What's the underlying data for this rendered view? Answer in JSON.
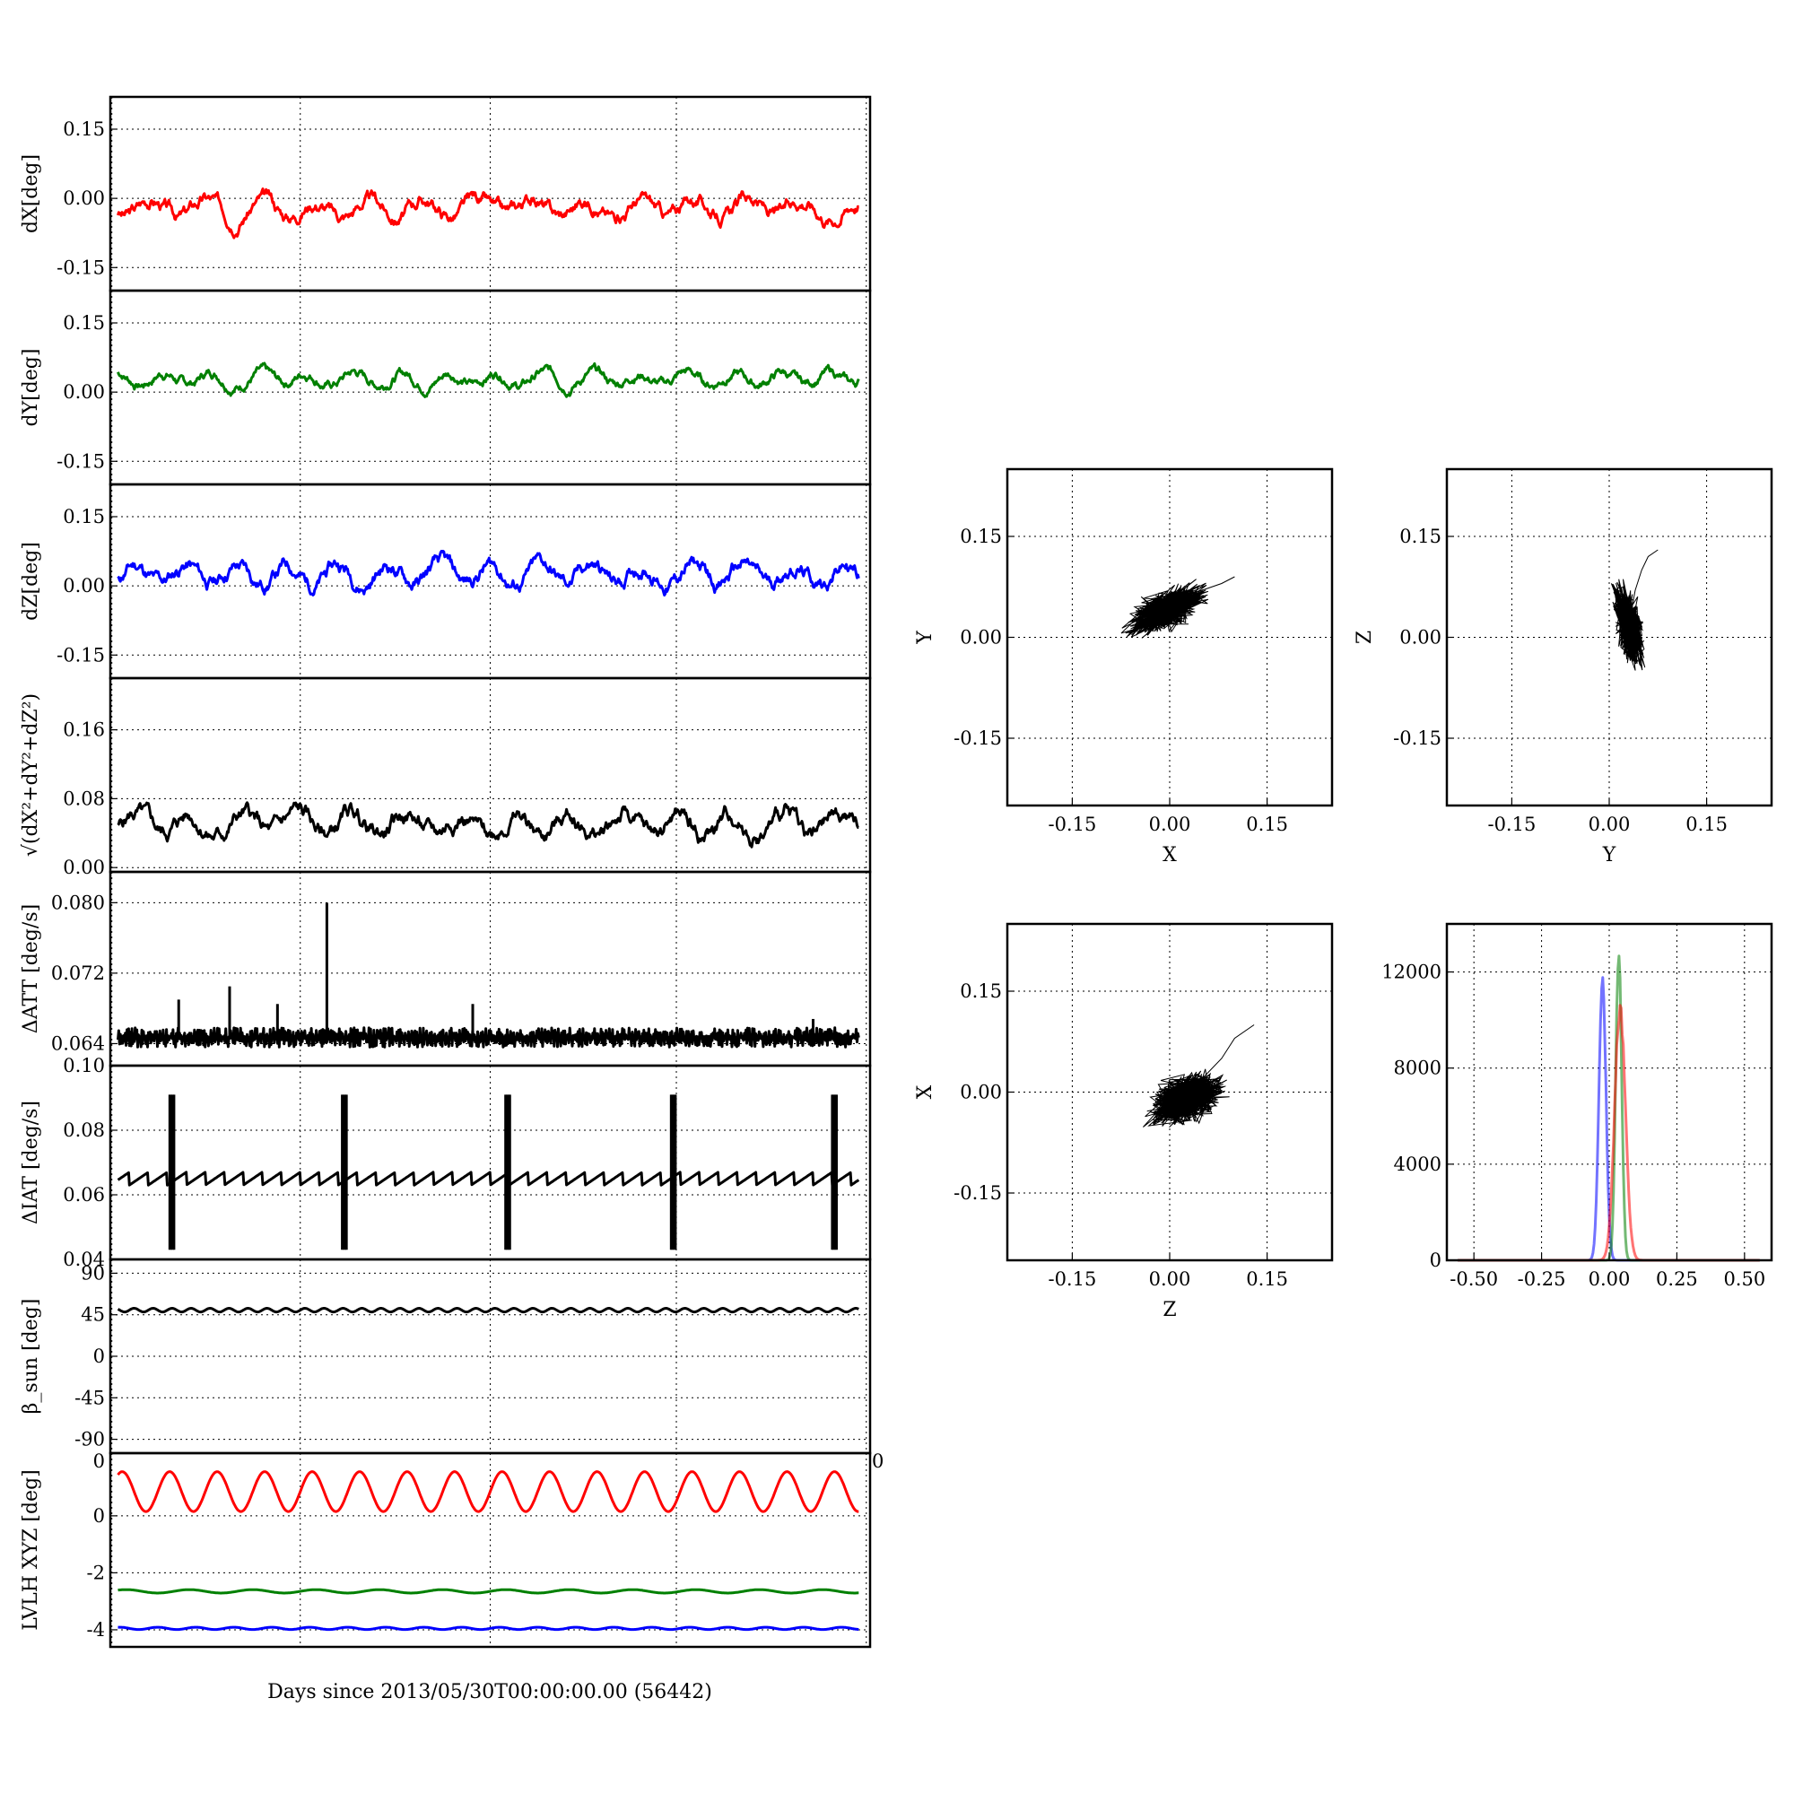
{
  "figure": {
    "xlabel": "Days since 2013/05/30T00:00:00.00 (56442)"
  },
  "chart_data": [
    {
      "id": "dx",
      "type": "line",
      "ylabel": "dX[deg]",
      "ylim": [
        -0.2,
        0.22
      ],
      "yticks": [
        "-0.15",
        "0.00",
        "0.15"
      ],
      "ytick_values": [
        -0.15,
        0.0,
        0.15
      ],
      "xlim": [
        0,
        1
      ],
      "grid": true,
      "series": [
        {
          "color": "#ff0000",
          "generator": "noise",
          "base": -0.02,
          "amp": 0.018,
          "waves": 14,
          "seed": 3,
          "end_jump": [
            0.985,
            1.0,
            0.1
          ]
        }
      ]
    },
    {
      "id": "dy",
      "type": "line",
      "ylabel": "dY[deg]",
      "ylim": [
        -0.2,
        0.22
      ],
      "yticks": [
        "-0.15",
        "0.00",
        "0.15"
      ],
      "ytick_values": [
        -0.15,
        0.0,
        0.15
      ],
      "xlim": [
        0,
        1
      ],
      "grid": true,
      "series": [
        {
          "color": "#008000",
          "generator": "noise",
          "base": 0.03,
          "amp": 0.013,
          "waves": 16,
          "seed": 7,
          "end_jump": [
            0.985,
            1.0,
            0.09
          ]
        }
      ]
    },
    {
      "id": "dz",
      "type": "line",
      "ylabel": "dZ[deg]",
      "ylim": [
        -0.2,
        0.22
      ],
      "yticks": [
        "-0.15",
        "0.00",
        "0.15"
      ],
      "ytick_values": [
        -0.15,
        0.0,
        0.15
      ],
      "xlim": [
        0,
        1
      ],
      "grid": true,
      "series": [
        {
          "color": "#0000ff",
          "generator": "noise",
          "base": 0.025,
          "amp": 0.02,
          "waves": 15,
          "seed": 11,
          "end_jump": [
            0.985,
            1.0,
            0.13
          ]
        }
      ]
    },
    {
      "id": "dr",
      "type": "line",
      "ylabel": "√(dX²+dY²+dZ²)",
      "ylim": [
        -0.005,
        0.22
      ],
      "yticks": [
        "0.00",
        "0.08",
        "0.16"
      ],
      "ytick_values": [
        0.0,
        0.08,
        0.16
      ],
      "xlim": [
        0,
        1
      ],
      "grid": true,
      "series": [
        {
          "color": "#000000",
          "generator": "noise",
          "base": 0.05,
          "amp": 0.012,
          "waves": 14,
          "seed": 5,
          "end_jump": [
            0.985,
            1.0,
            0.18
          ]
        }
      ]
    },
    {
      "id": "datt",
      "type": "line",
      "ylabel": "ΔATT [deg/s]",
      "ylim": [
        0.0615,
        0.0835
      ],
      "yticks": [
        "0.064",
        "0.072",
        "0.080"
      ],
      "ytick_values": [
        0.064,
        0.072,
        0.08
      ],
      "xlim": [
        0,
        1
      ],
      "grid": true,
      "series": [
        {
          "color": "#000000",
          "generator": "dense",
          "base": 0.0647,
          "amp": 0.0011,
          "seed": 9,
          "spikes": [
            [
              0.09,
              0.069
            ],
            [
              0.157,
              0.0705
            ],
            [
              0.22,
              0.0685
            ],
            [
              0.285,
              0.08
            ],
            [
              0.477,
              0.0685
            ],
            [
              0.925,
              0.0668
            ]
          ]
        }
      ]
    },
    {
      "id": "diat",
      "type": "line",
      "ylabel": "ΔIAT [deg/s]",
      "ylim": [
        0.04,
        0.1
      ],
      "yticks": [
        "0.04",
        "0.06",
        "0.08",
        "0.10"
      ],
      "ytick_values": [
        0.04,
        0.06,
        0.08,
        0.1
      ],
      "xlim": [
        0,
        1
      ],
      "grid": true,
      "series": [
        {
          "color": "#000000",
          "generator": "sawtooth",
          "low": 0.063,
          "high": 0.067,
          "teeth": 40,
          "bursts": [
            0.078,
            0.305,
            0.52,
            0.738,
            0.95
          ],
          "burst_low": 0.043,
          "burst_high": 0.091
        }
      ]
    },
    {
      "id": "beta",
      "type": "line",
      "ylabel": "β_sun [deg]",
      "ylim": [
        -105,
        105
      ],
      "yticks": [
        "-90",
        "-45",
        "0",
        "45",
        "90"
      ],
      "ytick_values": [
        -90,
        -45,
        0,
        45,
        90
      ],
      "xlim": [
        0,
        1
      ],
      "grid": true,
      "series": [
        {
          "color": "#000000",
          "generator": "sine",
          "base": 50,
          "amp": 2,
          "waves": 40
        }
      ]
    },
    {
      "id": "lvlh",
      "type": "line",
      "ylabel": "LVLH XYZ [deg]",
      "ylim": [
        -4.6,
        2.2
      ],
      "yticks": [
        "-4",
        "-2",
        "0"
      ],
      "ytick_values": [
        -4,
        -2,
        0
      ],
      "top_tick_label": "0",
      "xlim": [
        0,
        1
      ],
      "grid": true,
      "series": [
        {
          "color": "#ff0000",
          "generator": "sine",
          "base": 0.85,
          "amp": 0.7,
          "waves": 16
        },
        {
          "color": "#008000",
          "generator": "sine",
          "base": -2.65,
          "amp": 0.06,
          "waves": 12
        },
        {
          "color": "#0000ff",
          "generator": "sine",
          "base": -3.95,
          "amp": 0.04,
          "waves": 20
        }
      ]
    },
    {
      "id": "xy",
      "type": "scatter",
      "xlabel": "X",
      "ylabel": "Y",
      "xlim": [
        -0.25,
        0.25
      ],
      "ylim": [
        -0.25,
        0.25
      ],
      "xticks": [
        "-0.15",
        "0.00",
        "0.15"
      ],
      "xtick_values": [
        -0.15,
        0.0,
        0.15
      ],
      "yticks": [
        "-0.15",
        "0.00",
        "0.15"
      ],
      "ytick_values": [
        -0.15,
        0.0,
        0.15
      ],
      "grid": true,
      "cloud": {
        "center": [
          -0.005,
          0.04
        ],
        "spread": [
          0.03,
          0.018
        ],
        "tilt": 0.35,
        "count": 900,
        "seed": 21,
        "tail": [
          [
            0.02,
            0.06
          ],
          [
            0.05,
            0.07
          ],
          [
            0.08,
            0.08
          ],
          [
            0.1,
            0.09
          ]
        ]
      }
    },
    {
      "id": "yz",
      "type": "scatter",
      "xlabel": "Y",
      "ylabel": "Z",
      "xlim": [
        -0.25,
        0.25
      ],
      "ylim": [
        -0.25,
        0.25
      ],
      "xticks": [
        "-0.15",
        "0.00",
        "0.15"
      ],
      "xtick_values": [
        -0.15,
        0.0,
        0.15
      ],
      "yticks": [
        "-0.15",
        "0.00",
        "0.15"
      ],
      "ytick_values": [
        -0.15,
        0.0,
        0.15
      ],
      "grid": true,
      "cloud": {
        "center": [
          0.03,
          0.02
        ],
        "spread": [
          0.012,
          0.03
        ],
        "tilt": -0.3,
        "count": 800,
        "seed": 33,
        "tail": [
          [
            0.04,
            0.07
          ],
          [
            0.05,
            0.1
          ],
          [
            0.06,
            0.12
          ],
          [
            0.075,
            0.13
          ]
        ]
      }
    },
    {
      "id": "zx",
      "type": "scatter",
      "xlabel": "Z",
      "ylabel": "X",
      "xlim": [
        -0.25,
        0.25
      ],
      "ylim": [
        -0.25,
        0.25
      ],
      "xticks": [
        "-0.15",
        "0.00",
        "0.15"
      ],
      "xtick_values": [
        -0.15,
        0.0,
        0.15
      ],
      "yticks": [
        "-0.15",
        "0.00",
        "0.15"
      ],
      "ytick_values": [
        -0.15,
        0.0,
        0.15
      ],
      "grid": true,
      "cloud": {
        "center": [
          0.025,
          -0.01
        ],
        "spread": [
          0.03,
          0.02
        ],
        "tilt": 0.2,
        "count": 900,
        "seed": 45,
        "tail": [
          [
            0.05,
            0.02
          ],
          [
            0.08,
            0.05
          ],
          [
            0.1,
            0.08
          ],
          [
            0.13,
            0.1
          ]
        ]
      }
    },
    {
      "id": "hist",
      "type": "line",
      "subtype": "histogram",
      "xlim": [
        -0.6,
        0.6
      ],
      "ylim": [
        0,
        14000
      ],
      "xticks": [
        "-0.50",
        "-0.25",
        "0.00",
        "0.25",
        "0.50"
      ],
      "xtick_values": [
        -0.5,
        -0.25,
        0.0,
        0.25,
        0.5
      ],
      "yticks": [
        "0",
        "4000",
        "8000",
        "12000"
      ],
      "ytick_values": [
        0,
        4000,
        8000,
        12000
      ],
      "grid": true,
      "series": [
        {
          "color": "#0000ff",
          "opacity": 0.55,
          "center": -0.025,
          "width": 0.013,
          "peak": 12300
        },
        {
          "color": "#008000",
          "opacity": 0.55,
          "center": 0.035,
          "width": 0.011,
          "peak": 13400
        },
        {
          "color": "#ff0000",
          "opacity": 0.55,
          "center": 0.04,
          "width": 0.02,
          "peak": 10800
        }
      ]
    }
  ]
}
